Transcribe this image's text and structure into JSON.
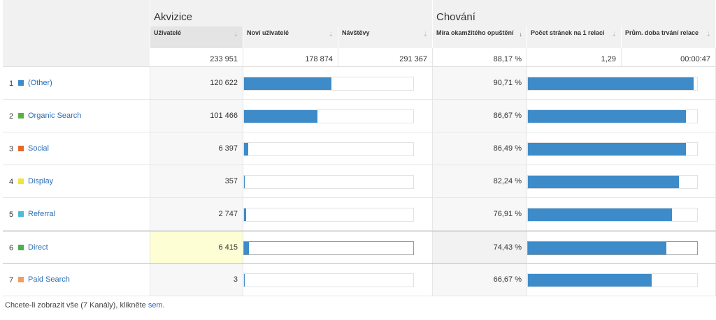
{
  "groups": {
    "acquisition": "Akvizice",
    "behavior": "Chování"
  },
  "columns": {
    "users": "Uživatelé",
    "new_users": "Noví uživatelé",
    "sessions": "Návštěvy",
    "bounce_rate": "Míra okamžitého opuštění",
    "pages_per_session": "Počet stránek na 1 relaci",
    "avg_duration": "Prům. doba trvání relace"
  },
  "sort_icons": {
    "neutral": "⇣",
    "active": "↓"
  },
  "totals": {
    "users": "233 951",
    "new_users": "178 874",
    "sessions": "291 367",
    "bounce_rate": "88,17 %",
    "pages_per_session": "1,29",
    "avg_duration": "00:00:47"
  },
  "rows": [
    {
      "rank": "1",
      "channel": "(Other)",
      "color": "#3d8bc9",
      "users": "120 622",
      "new_users_share": 0.515,
      "bounce_rate": "90,71 %",
      "bounce_share": 0.9807
    },
    {
      "rank": "2",
      "channel": "Organic Search",
      "color": "#5cb042",
      "users": "101 466",
      "new_users_share": 0.435,
      "bounce_rate": "86,67 %",
      "bounce_share": 0.9358
    },
    {
      "rank": "3",
      "channel": "Social",
      "color": "#e8672c",
      "users": "6 397",
      "new_users_share": 0.026,
      "bounce_rate": "86,49 %",
      "bounce_share": 0.9358
    },
    {
      "rank": "4",
      "channel": "Display",
      "color": "#f5e23a",
      "users": "357",
      "new_users_share": 0.004,
      "bounce_rate": "82,24 %",
      "bounce_share": 0.8933
    },
    {
      "rank": "5",
      "channel": "Referral",
      "color": "#4fb8db",
      "users": "2 747",
      "new_users_share": 0.013,
      "bounce_rate": "76,91 %",
      "bounce_share": 0.8504
    },
    {
      "rank": "6",
      "channel": "Direct",
      "color": "#4caf50",
      "users": "6 415",
      "new_users_share": 0.027,
      "bounce_rate": "74,43 %",
      "bounce_share": 0.8189,
      "highlighted": true
    },
    {
      "rank": "7",
      "channel": "Paid Search",
      "color": "#f39d5c",
      "users": "3",
      "new_users_share": 0.004,
      "bounce_rate": "66,67 %",
      "bounce_share": 0.7305
    }
  ],
  "footer": {
    "text_before": "Chcete-li zobrazit vše (7 Kanály), klikněte ",
    "link": "sem",
    "text_after": "."
  }
}
